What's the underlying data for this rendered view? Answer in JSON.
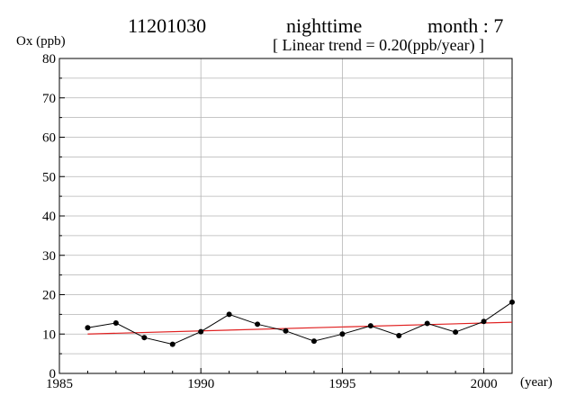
{
  "header": {
    "station": "11201030",
    "period": "nighttime",
    "month": "month : 7",
    "trend": "[ Linear trend = 0.20(ppb/year) ]"
  },
  "chart_data": {
    "type": "line",
    "title": "11201030 nighttime month : 7",
    "subtitle": "[ Linear trend = 0.20(ppb/year) ]",
    "xlabel": "(year)",
    "ylabel": "Ox (ppb)",
    "xlim": [
      1985,
      2001
    ],
    "ylim": [
      0,
      80
    ],
    "xticks": [
      1985,
      1990,
      1995,
      2000
    ],
    "yticks": [
      0,
      10,
      20,
      30,
      40,
      50,
      60,
      70,
      80
    ],
    "grid": true,
    "series": [
      {
        "x": [
          1986,
          1987,
          1988,
          1989,
          1990,
          1991,
          1992,
          1993,
          1994,
          1995,
          1996,
          1997,
          1998,
          1999,
          2000,
          2001
        ],
        "values": [
          11.6,
          12.8,
          9.1,
          7.4,
          10.6,
          15.0,
          12.5,
          10.8,
          8.2,
          10.0,
          12.1,
          9.6,
          12.7,
          10.5,
          13.2,
          18.1
        ],
        "color": "#000000"
      }
    ],
    "trend_line": {
      "x": [
        1986,
        2001
      ],
      "values": [
        10.0,
        13.0
      ],
      "color": "#e02020"
    }
  }
}
